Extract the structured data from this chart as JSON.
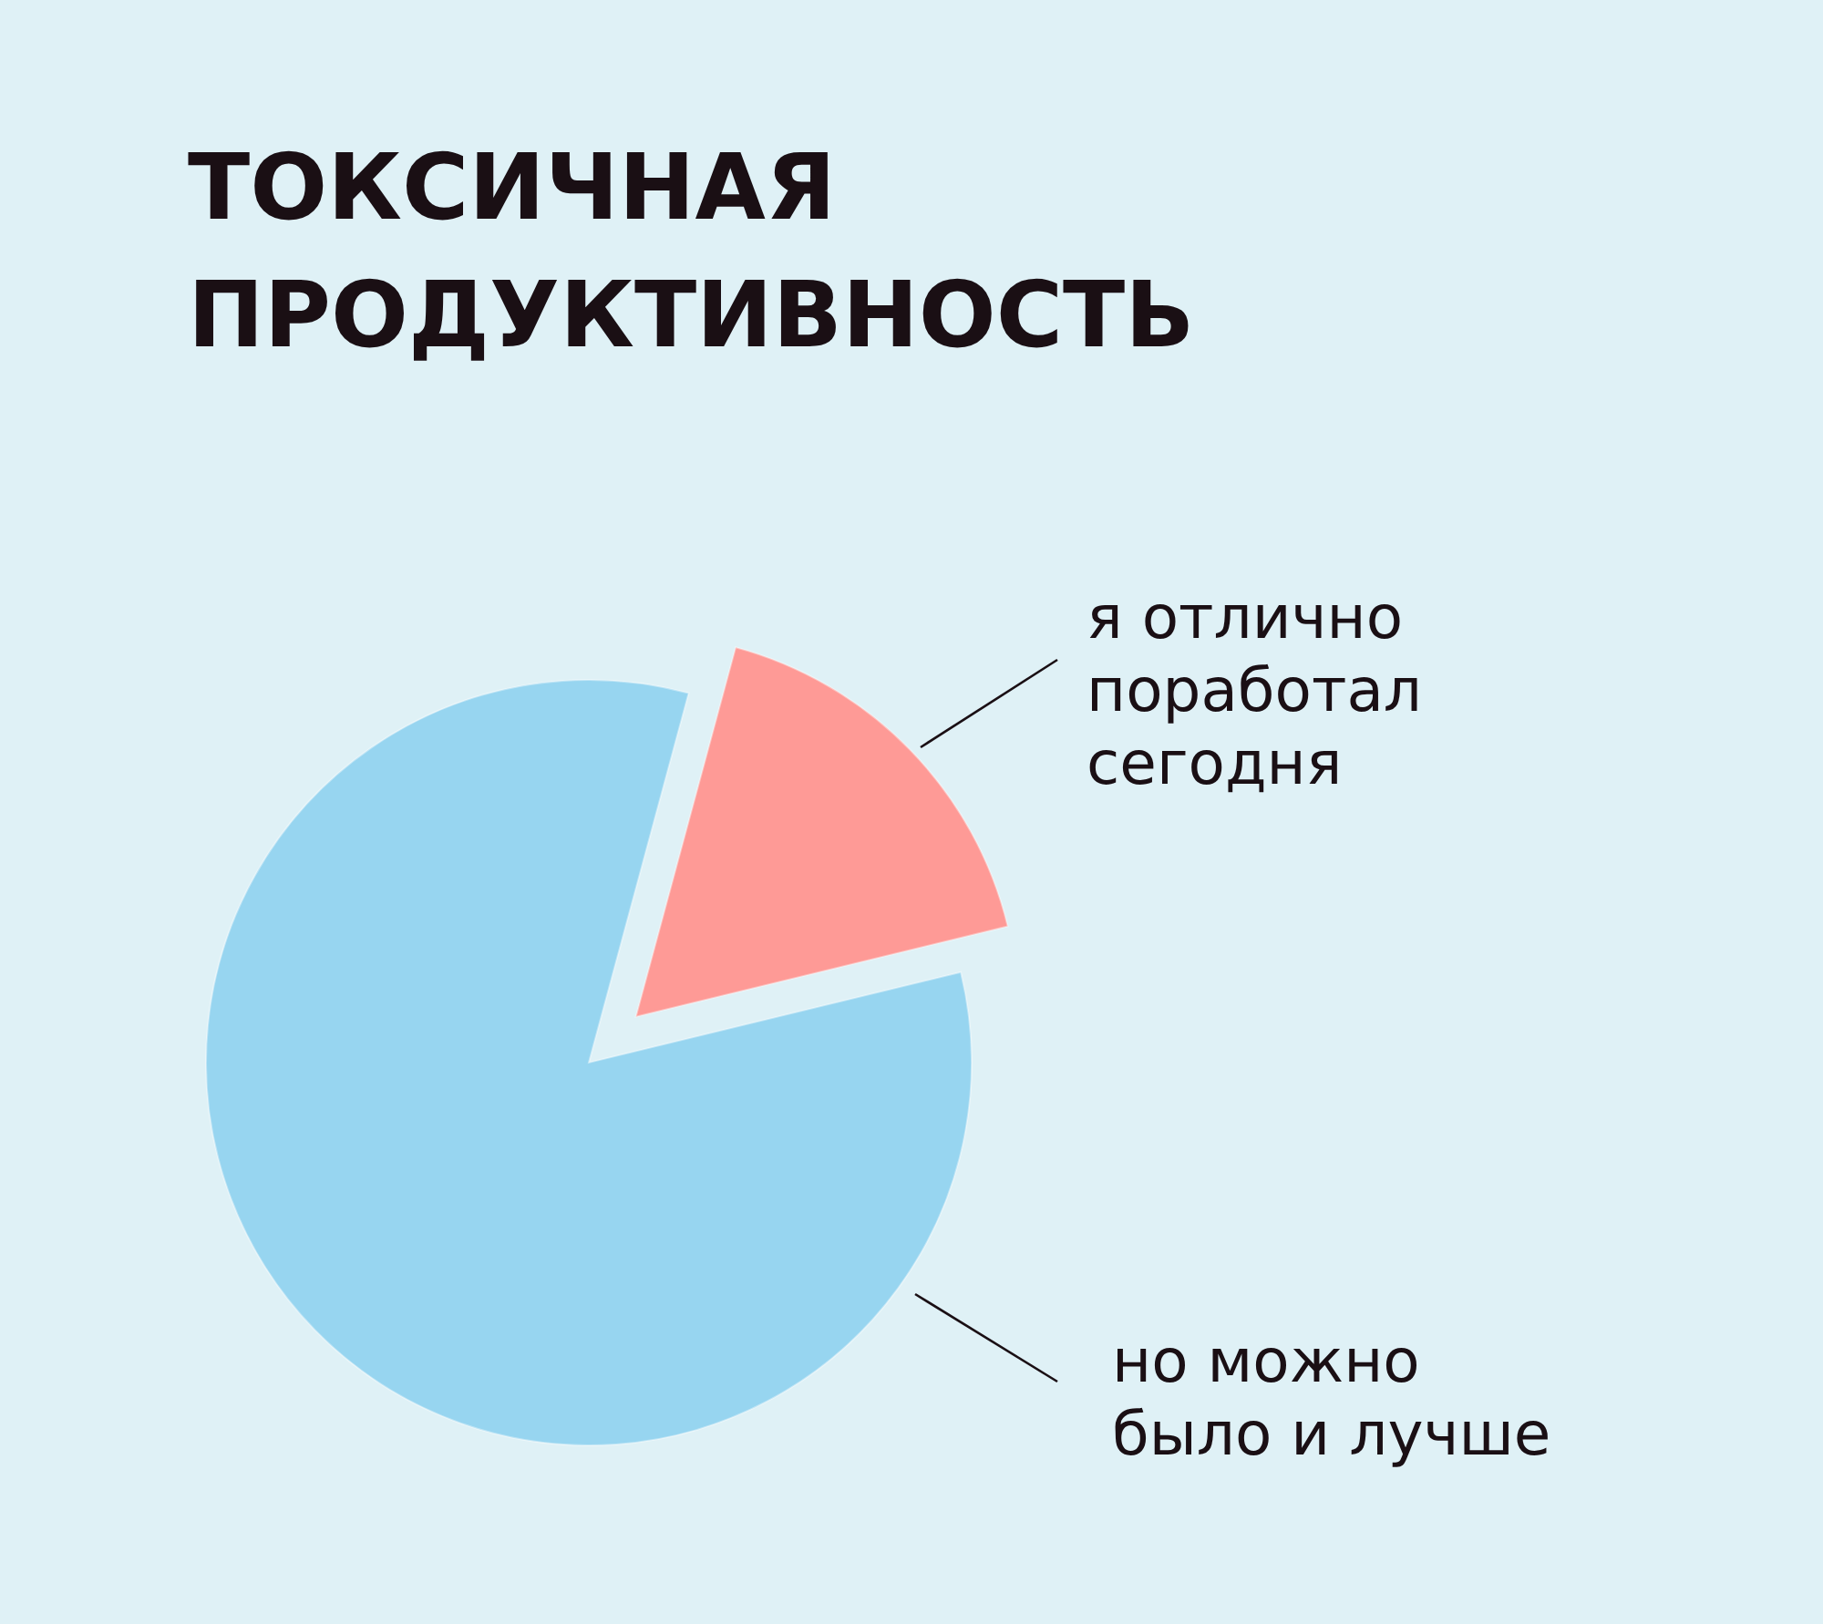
{
  "chart_data": {
    "type": "pie",
    "title": "ТОКСИЧНАЯ ПРОДУКТИВНОСТЬ",
    "categories": [
      "я отлично поработал сегодня",
      "но можно было и лучше"
    ],
    "values": [
      17,
      83
    ],
    "colors": [
      "#fe9a96",
      "#97d5f0"
    ]
  }
}
